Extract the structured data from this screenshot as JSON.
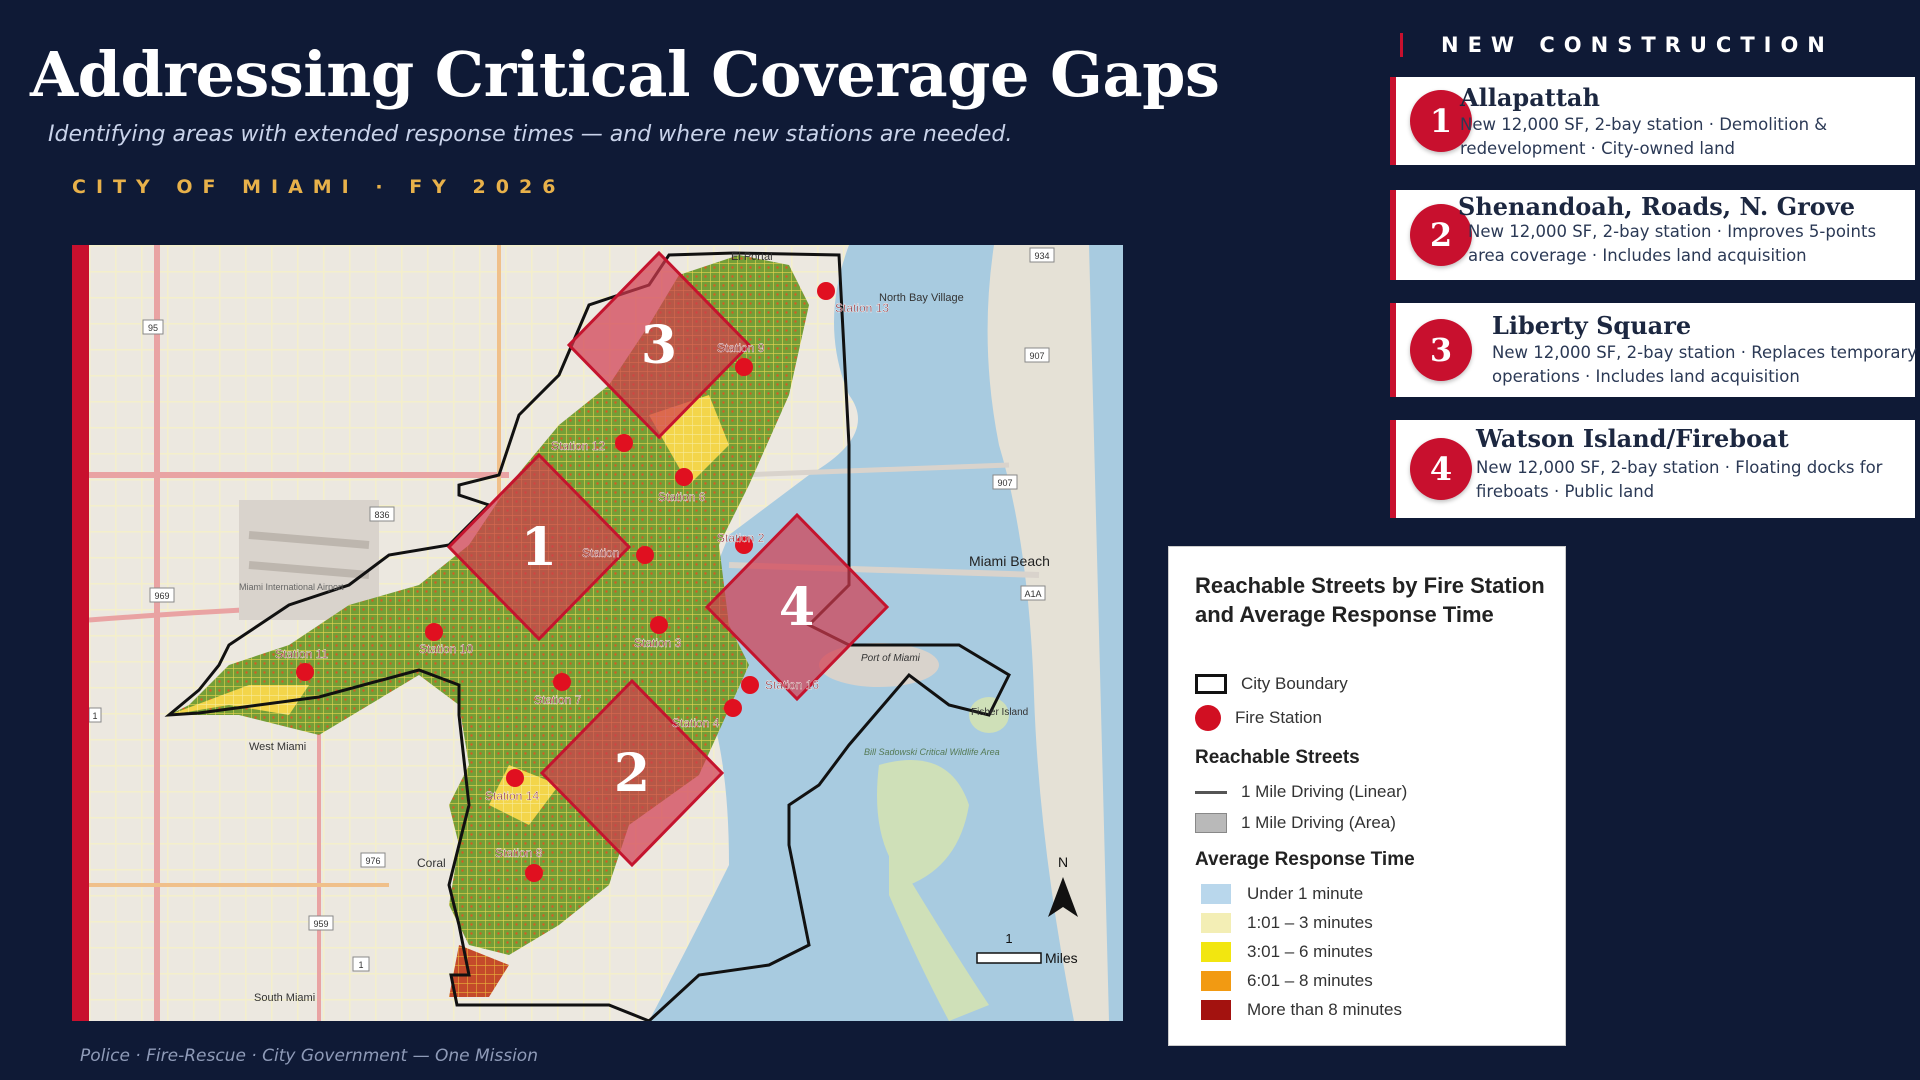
{
  "header": {
    "title": "Addressing Critical Coverage Gaps",
    "subtitle": "Identifying areas with extended response times — and where new stations are needed.",
    "kicker": "CITY OF MIAMI   ·   FY 2026"
  },
  "footer": "Police  ·  Fire-Rescue  ·  City Government — One Mission",
  "new_construction": {
    "heading": "NEW CONSTRUCTION",
    "cards": [
      {
        "num": "1",
        "title": "Allapattah",
        "desc": "New 12,000 SF, 2-bay station  ·  Demolition & redevelopment  ·  City-owned land"
      },
      {
        "num": "2",
        "title": "Shenandoah, Roads, N. Grove",
        "desc": "New 12,000 SF, 2-bay station  ·  Improves 5-points area coverage  ·  Includes land acquisition"
      },
      {
        "num": "3",
        "title": "Liberty Square",
        "desc": "New 12,000 SF, 2-bay station  ·  Replaces temporary operations  ·  Includes land acquisition"
      },
      {
        "num": "4",
        "title": "Watson Island/Fireboat",
        "desc": "New 12,000 SF, 2-bay station  ·  Floating docks for fireboats  ·  Public land"
      }
    ]
  },
  "map": {
    "zones": [
      "1",
      "2",
      "3",
      "4"
    ],
    "stations": [
      "Station 13",
      "Station 9",
      "Station 12",
      "Station 6",
      "Station 2",
      "Station",
      "Station 3",
      "Station 10",
      "Station 11",
      "Station 7",
      "Station 4",
      "Station 16",
      "Station 14",
      "Station 8"
    ],
    "places": [
      "El Portal",
      "North Bay Village",
      "Miami Beach",
      "Miami International Airport",
      "West Miami",
      "Coral",
      "South Miami",
      "Port of Miami",
      "Fisher Island",
      "Bill Sadowski Critical Wildlife Area"
    ],
    "road_shields": [
      "95",
      "934",
      "907",
      "836",
      "969",
      "907",
      "A1A",
      "1",
      "976",
      "959",
      "1"
    ],
    "north_label": "N",
    "scale_value": "1",
    "scale_unit": "Miles"
  },
  "legend": {
    "title": "Reachable Streets by Fire Station and Average Response Time",
    "items": [
      {
        "label": "City Boundary"
      },
      {
        "label": "Fire Station"
      }
    ],
    "reachable_heading": "Reachable Streets",
    "reachable": [
      {
        "label": "1 Mile Driving (Linear)"
      },
      {
        "label": "1 Mile Driving (Area)"
      }
    ],
    "response_heading": "Average Response Time",
    "response": [
      {
        "label": "Under 1 minute",
        "color": "#b9d7ec"
      },
      {
        "label": "1:01 – 3 minutes",
        "color": "#f3eeb5"
      },
      {
        "label": "3:01 – 6 minutes",
        "color": "#f2e610"
      },
      {
        "label": "6:01 – 8 minutes",
        "color": "#f29a12"
      },
      {
        "label": "More than 8 minutes",
        "color": "#a3120f"
      }
    ]
  },
  "colors": {
    "accent": "#c8102e",
    "background": "#0f1a36",
    "kicker": "#e8b14a"
  }
}
